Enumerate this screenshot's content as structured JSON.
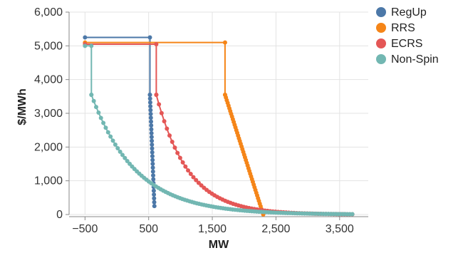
{
  "chart_data": {
    "type": "line",
    "title": "",
    "xlabel": "MW",
    "ylabel": "$/MWh",
    "xlim": [
      -750,
      3950
    ],
    "ylim": [
      0,
      6000
    ],
    "x_ticks": [
      -500,
      500,
      1500,
      2500,
      3500
    ],
    "x_tick_labels": [
      "−500",
      "500",
      "1,500",
      "2,500",
      "3,500"
    ],
    "y_ticks": [
      0,
      1000,
      2000,
      3000,
      4000,
      5000,
      6000
    ],
    "y_tick_labels": [
      "0",
      "1,000",
      "2,000",
      "3,000",
      "4,000",
      "5,000",
      "6,000"
    ],
    "grid": true,
    "legend_position": "top-right",
    "series": [
      {
        "name": "RegUp",
        "color": "#4c78a8",
        "line_points": [
          [
            -500,
            5250
          ],
          [
            520,
            5250
          ],
          [
            520,
            3550
          ]
        ],
        "marker_segment": {
          "x_start": 520,
          "x_end": 590,
          "y_start": 3550,
          "y_end": 250,
          "shape": "linear",
          "count": 30
        }
      },
      {
        "name": "RRS",
        "color": "#f58518",
        "line_points": [
          [
            -500,
            5100
          ],
          [
            1700,
            5100
          ],
          [
            1700,
            3550
          ]
        ],
        "marker_segment": {
          "x_start": 1700,
          "x_end": 2300,
          "y_start": 3550,
          "y_end": 0,
          "shape": "linear",
          "count": 45
        }
      },
      {
        "name": "ECRS",
        "color": "#e45756",
        "line_points": [
          [
            -500,
            5050
          ],
          [
            620,
            5050
          ],
          [
            620,
            3550
          ]
        ],
        "marker_segment": {
          "x_start": 620,
          "x_end": 3700,
          "y_start": 3550,
          "y_end": 0,
          "shape": "decay",
          "decay_scale": 500,
          "count": 75
        }
      },
      {
        "name": "Non-Spin",
        "color": "#72b7b2",
        "line_points": [
          [
            -500,
            5000
          ],
          [
            -400,
            5000
          ],
          [
            -400,
            3550
          ]
        ],
        "marker_segment": {
          "x_start": -400,
          "x_end": 3700,
          "y_start": 3550,
          "y_end": 0,
          "shape": "decay",
          "decay_scale": 700,
          "count": 110
        }
      }
    ]
  }
}
